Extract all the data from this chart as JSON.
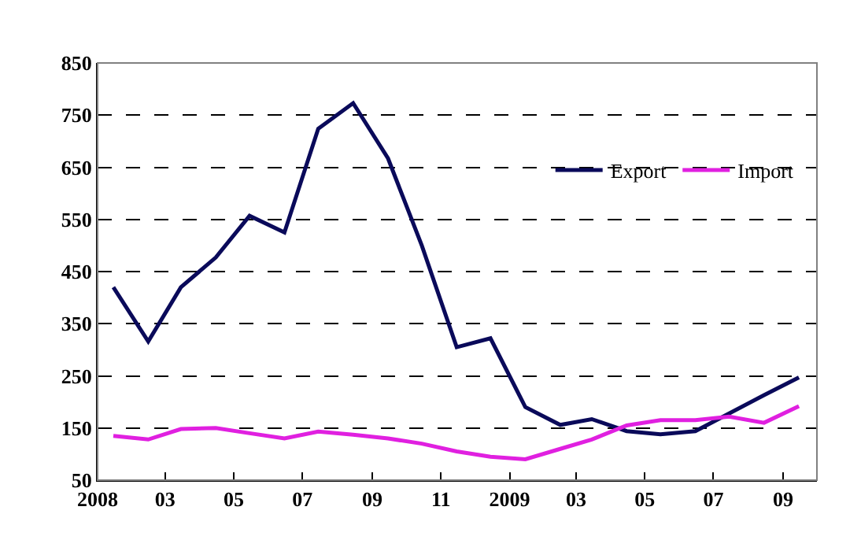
{
  "chart_data": {
    "type": "line",
    "x": [
      "2008-01-15",
      "2008-02-15",
      "2008-03-15",
      "2008-04-15",
      "2008-05-15",
      "2008-06-15",
      "2008-07-15",
      "2008-08-15",
      "2008-09-15",
      "2008-10-15",
      "2008-11-15",
      "2008-12-15",
      "2009-01-15",
      "2009-02-15",
      "2009-03-15",
      "2009-04-15",
      "2009-05-15",
      "2009-06-15",
      "2009-07-15",
      "2009-08-15",
      "2009-09-15"
    ],
    "series": [
      {
        "name": "Export",
        "color": "#0a0a5a",
        "values": [
          420,
          316,
          420,
          477,
          557,
          525,
          724,
          773,
          667,
          500,
          305,
          322,
          190,
          156,
          167,
          144,
          138,
          144,
          178,
          213,
          247
        ]
      },
      {
        "name": "Import",
        "color": "#e020e0",
        "values": [
          135,
          128,
          148,
          150,
          140,
          130,
          143,
          137,
          130,
          120,
          105,
          95,
          90,
          110,
          128,
          155,
          165,
          165,
          172,
          160,
          192
        ]
      }
    ],
    "xlim": [
      "2008-01-01",
      "2009-10-01"
    ],
    "xticks": [
      {
        "value": "2008-01-01",
        "label": "2008"
      },
      {
        "value": "2008-03-01",
        "label": "03"
      },
      {
        "value": "2008-05-01",
        "label": "05"
      },
      {
        "value": "2008-07-01",
        "label": "07"
      },
      {
        "value": "2008-09-01",
        "label": "09"
      },
      {
        "value": "2008-11-01",
        "label": "11"
      },
      {
        "value": "2009-01-01",
        "label": "2009"
      },
      {
        "value": "2009-03-01",
        "label": "03"
      },
      {
        "value": "2009-05-01",
        "label": "05"
      },
      {
        "value": "2009-07-01",
        "label": "07"
      },
      {
        "value": "2009-09-01",
        "label": "09"
      }
    ],
    "ylim": [
      50,
      850
    ],
    "yticks": [
      50,
      150,
      250,
      350,
      450,
      550,
      650,
      750,
      850
    ],
    "grid": "y",
    "legend": "top right",
    "marker": "none",
    "line_style": "solid"
  }
}
